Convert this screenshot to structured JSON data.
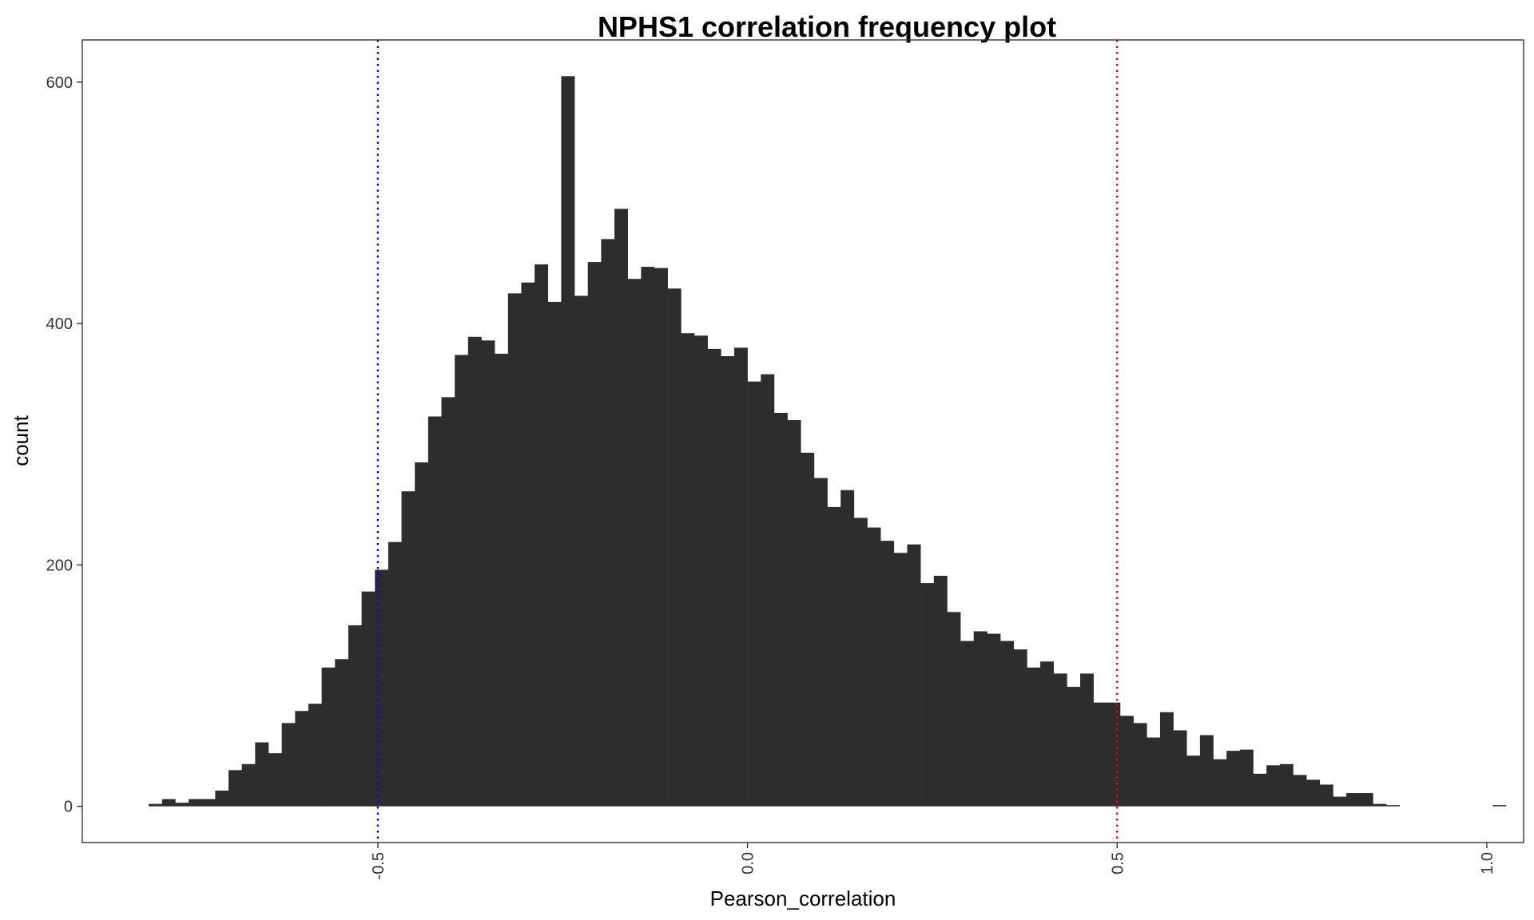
{
  "chart_data": {
    "type": "bar",
    "title": "NPHS1 correlation frequency plot",
    "xlabel": "Pearson_correlation",
    "ylabel": "count",
    "xlim": [
      -0.8998,
      1.0498
    ],
    "ylim": [
      -30,
      635
    ],
    "x_ticks": [
      -0.5,
      0.0,
      0.5,
      1.0
    ],
    "x_tick_labels": [
      "-0.5",
      "0.0",
      "0.5",
      "1.0"
    ],
    "y_ticks": [
      0,
      200,
      400,
      600
    ],
    "y_tick_labels": [
      "0",
      "200",
      "400",
      "600"
    ],
    "bin_start": -0.81,
    "bin_width": 0.018,
    "values": [
      2,
      6,
      3,
      6,
      6,
      13,
      30,
      35,
      53,
      44,
      69,
      79,
      85,
      115,
      122,
      150,
      178,
      196,
      219,
      261,
      285,
      323,
      339,
      374,
      389,
      386,
      375,
      425,
      434,
      449,
      418,
      605,
      423,
      451,
      470,
      495,
      437,
      447,
      446,
      429,
      392,
      390,
      379,
      373,
      380,
      352,
      358,
      326,
      320,
      293,
      272,
      248,
      262,
      239,
      231,
      220,
      210,
      217,
      185,
      191,
      161,
      137,
      145,
      143,
      137,
      130,
      115,
      120,
      110,
      99,
      110,
      86,
      86,
      75,
      69,
      57,
      78,
      63,
      42,
      59,
      39,
      46,
      47,
      27,
      34,
      35,
      26,
      22,
      18,
      8,
      11,
      11,
      2,
      1,
      0,
      0,
      0,
      0,
      0,
      0,
      0,
      1
    ],
    "bar_color": "#2d2d2d",
    "vlines": [
      {
        "x": -0.5,
        "color": "#0000ff",
        "style": "dotted"
      },
      {
        "x": 0.5,
        "color": "#ff0000",
        "style": "dotted"
      }
    ],
    "grid": false,
    "legend": "none"
  }
}
